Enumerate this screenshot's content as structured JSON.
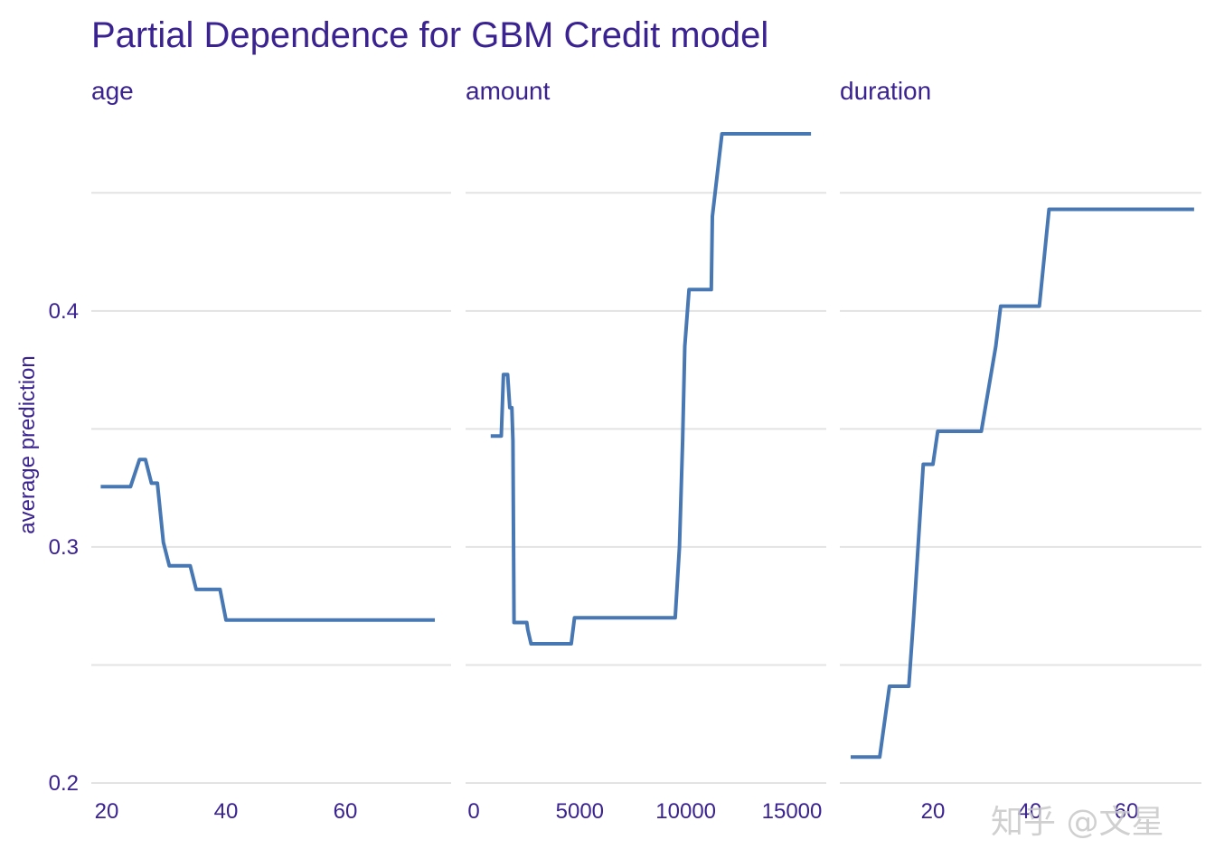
{
  "colors": {
    "text": "#3a2391",
    "line": "#4878b4",
    "grid": "#e3e3e3"
  },
  "chart_data": {
    "type": "line",
    "title": "Partial Dependence for GBM Credit model",
    "ylabel": "average prediction",
    "ylim": [
      0.2,
      0.48
    ],
    "y_ticks": [
      0.2,
      0.3,
      0.4
    ],
    "y_tick_labels": [
      "0.2",
      "0.3",
      "0.4"
    ],
    "panels": [
      {
        "name": "age",
        "xlim": [
          17,
          77
        ],
        "x_ticks": [
          20,
          40,
          60
        ],
        "x_tick_labels": [
          "20",
          "40",
          "60"
        ],
        "x": [
          19,
          24,
          25.5,
          26.5,
          27.5,
          28.5,
          29.5,
          30.5,
          34,
          35,
          39,
          40,
          75
        ],
        "y": [
          0.3255,
          0.3255,
          0.337,
          0.337,
          0.327,
          0.327,
          0.302,
          0.292,
          0.292,
          0.282,
          0.282,
          0.269,
          0.269
        ]
      },
      {
        "name": "amount",
        "xlim": [
          -300,
          16500
        ],
        "x_ticks": [
          0,
          5000,
          10000,
          15000
        ],
        "x_tick_labels": [
          "0",
          "5000",
          "10000",
          "15000"
        ],
        "x": [
          800,
          1300,
          1400,
          1600,
          1700,
          1800,
          1850,
          1900,
          2500,
          2550,
          2700,
          4600,
          4750,
          9500,
          9700,
          9850,
          9950,
          10150,
          10200,
          11200,
          11250,
          11700,
          11800,
          15900
        ],
        "y": [
          0.347,
          0.347,
          0.373,
          0.373,
          0.359,
          0.359,
          0.345,
          0.268,
          0.268,
          0.265,
          0.259,
          0.259,
          0.27,
          0.27,
          0.3,
          0.345,
          0.385,
          0.409,
          0.409,
          0.409,
          0.44,
          0.475,
          0.475,
          0.475
        ]
      },
      {
        "name": "duration",
        "xlim": [
          0,
          77
        ],
        "x_ticks": [
          20,
          40,
          60
        ],
        "x_tick_labels": [
          "20",
          "40",
          "60"
        ],
        "x": [
          3,
          9,
          11,
          15,
          16,
          18,
          20,
          21,
          30,
          33,
          34,
          42,
          44,
          74
        ],
        "y": [
          0.211,
          0.211,
          0.241,
          0.241,
          0.27,
          0.335,
          0.335,
          0.349,
          0.349,
          0.385,
          0.402,
          0.402,
          0.443,
          0.443
        ]
      }
    ]
  },
  "watermark": {
    "text": "知乎 @文星"
  }
}
